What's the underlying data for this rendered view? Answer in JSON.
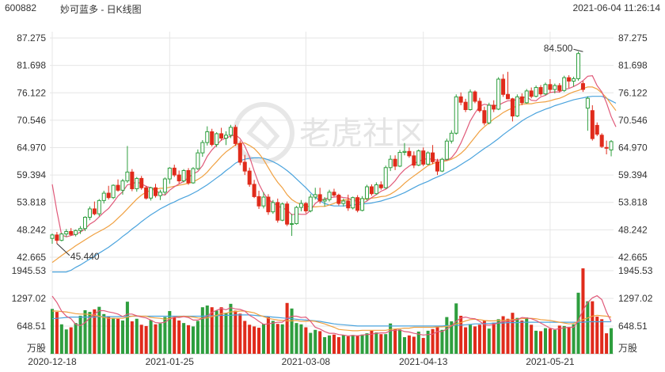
{
  "header": {
    "code": "600882",
    "title": "妙可蓝多 - 日K线图",
    "timestamp": "2021-06-04 11:26:14"
  },
  "watermark": "老虎社区",
  "colors": {
    "up": "#2e9e3e",
    "down": "#e02b1b",
    "ma5": "#e05a7a",
    "ma10": "#f0a040",
    "ma20": "#4aa3dd",
    "grid": "#e6e6e6",
    "annot": "#333333"
  },
  "chart_data": {
    "type": "candlestick",
    "price_axis": {
      "ticks": [
        "87.275",
        "81.698",
        "76.122",
        "70.546",
        "64.970",
        "59.394",
        "53.818",
        "48.242",
        "42.665"
      ],
      "range": [
        42.665,
        87.275
      ]
    },
    "volume_axis": {
      "ticks": [
        "1945.53",
        "1297.02",
        "648.51"
      ],
      "unit": "万股",
      "range": [
        0,
        1945.53
      ]
    },
    "date_labels": [
      "2020-12-18",
      "2021-01-25",
      "2021-03-08",
      "2021-04-13",
      "2021-05-21"
    ],
    "date_label_index": [
      0,
      25,
      54,
      79,
      106
    ],
    "annotations": [
      {
        "text": "84.500",
        "index": 113,
        "value": 84.5
      },
      {
        "text": "45.440",
        "index": 1,
        "value": 45.44
      }
    ],
    "candles": [
      [
        46.5,
        47.5,
        45.4,
        47.2
      ],
      [
        47.2,
        47.8,
        45.4,
        46.1
      ],
      [
        46.1,
        47.6,
        45.9,
        47.4
      ],
      [
        47.4,
        48.4,
        46.8,
        47.9
      ],
      [
        47.9,
        48.6,
        47.0,
        47.3
      ],
      [
        47.3,
        48.3,
        46.9,
        48.1
      ],
      [
        48.1,
        49.0,
        47.4,
        48.5
      ],
      [
        48.5,
        51.0,
        48.0,
        50.8
      ],
      [
        50.8,
        53.0,
        50.2,
        52.5
      ],
      [
        52.5,
        54.0,
        51.2,
        51.5
      ],
      [
        51.5,
        54.5,
        51.0,
        54.2
      ],
      [
        54.2,
        56.2,
        53.6,
        55.7
      ],
      [
        55.7,
        57.2,
        54.4,
        54.8
      ],
      [
        54.8,
        57.5,
        54.5,
        57.3
      ],
      [
        57.3,
        58.5,
        56.0,
        56.3
      ],
      [
        56.3,
        58.6,
        55.4,
        58.2
      ],
      [
        58.2,
        65.3,
        57.8,
        60.0
      ],
      [
        60.0,
        60.6,
        56.1,
        56.6
      ],
      [
        56.6,
        59.0,
        56.0,
        58.7
      ],
      [
        58.7,
        59.2,
        56.4,
        56.8
      ],
      [
        56.8,
        57.2,
        54.4,
        54.7
      ],
      [
        54.7,
        57.0,
        54.2,
        56.8
      ],
      [
        56.8,
        57.6,
        54.8,
        55.2
      ],
      [
        55.2,
        56.4,
        54.3,
        55.9
      ],
      [
        55.9,
        58.9,
        55.4,
        58.6
      ],
      [
        58.6,
        61.0,
        57.6,
        60.8
      ],
      [
        60.8,
        61.5,
        59.0,
        59.4
      ],
      [
        59.4,
        60.3,
        57.7,
        58.2
      ],
      [
        58.2,
        60.6,
        57.9,
        60.3
      ],
      [
        60.3,
        60.8,
        57.4,
        57.8
      ],
      [
        57.8,
        61.0,
        57.6,
        60.7
      ],
      [
        60.7,
        64.6,
        60.4,
        63.9
      ],
      [
        63.9,
        66.5,
        63.1,
        66.0
      ],
      [
        66.0,
        69.3,
        65.4,
        68.2
      ],
      [
        68.2,
        68.8,
        65.2,
        65.6
      ],
      [
        65.6,
        68.1,
        65.1,
        67.8
      ],
      [
        67.8,
        69.0,
        66.4,
        66.9
      ],
      [
        66.9,
        68.3,
        65.5,
        67.5
      ],
      [
        67.5,
        69.6,
        66.9,
        69.1
      ],
      [
        69.1,
        69.6,
        65.3,
        65.8
      ],
      [
        65.8,
        66.4,
        61.4,
        62.0
      ],
      [
        62.0,
        63.5,
        59.4,
        60.2
      ],
      [
        60.2,
        60.9,
        57.0,
        57.5
      ],
      [
        57.5,
        58.4,
        54.7,
        55.0
      ],
      [
        55.0,
        56.2,
        52.5,
        53.1
      ],
      [
        53.1,
        55.9,
        52.6,
        54.9
      ],
      [
        54.9,
        55.5,
        51.3,
        51.9
      ],
      [
        51.9,
        54.3,
        51.5,
        53.8
      ],
      [
        53.8,
        54.6,
        49.7,
        50.2
      ],
      [
        50.2,
        53.8,
        50.0,
        53.5
      ],
      [
        53.5,
        54.0,
        49.0,
        49.4
      ],
      [
        49.4,
        51.5,
        47.0,
        49.5
      ],
      [
        49.5,
        53.1,
        49.3,
        52.8
      ],
      [
        52.8,
        54.3,
        52.0,
        53.6
      ],
      [
        53.6,
        53.9,
        51.6,
        52.1
      ],
      [
        52.1,
        55.5,
        51.8,
        54.9
      ],
      [
        54.9,
        56.8,
        54.4,
        55.4
      ],
      [
        55.4,
        56.8,
        53.6,
        54.1
      ],
      [
        54.1,
        54.9,
        53.0,
        54.4
      ],
      [
        54.4,
        56.4,
        54.0,
        55.9
      ],
      [
        55.9,
        56.6,
        55.0,
        55.3
      ],
      [
        55.3,
        55.6,
        53.2,
        53.6
      ],
      [
        53.6,
        54.6,
        53.0,
        54.1
      ],
      [
        54.1,
        55.4,
        52.1,
        52.7
      ],
      [
        52.7,
        55.0,
        52.4,
        54.8
      ],
      [
        54.8,
        55.3,
        51.8,
        52.2
      ],
      [
        52.2,
        55.1,
        52.0,
        54.6
      ],
      [
        54.6,
        57.4,
        54.2,
        57.0
      ],
      [
        57.0,
        57.5,
        55.2,
        55.6
      ],
      [
        55.6,
        57.9,
        55.4,
        57.4
      ],
      [
        57.4,
        58.1,
        56.4,
        56.8
      ],
      [
        56.8,
        61.3,
        56.6,
        60.9
      ],
      [
        60.9,
        63.4,
        60.2,
        62.6
      ],
      [
        62.6,
        63.4,
        60.4,
        61.2
      ],
      [
        61.2,
        64.5,
        61.0,
        64.0
      ],
      [
        64.0,
        65.9,
        63.4,
        64.2
      ],
      [
        64.2,
        65.0,
        62.9,
        63.3
      ],
      [
        63.3,
        64.2,
        60.8,
        61.4
      ],
      [
        61.4,
        64.6,
        61.2,
        64.3
      ],
      [
        64.3,
        65.0,
        61.2,
        61.6
      ],
      [
        61.6,
        64.2,
        61.4,
        63.9
      ],
      [
        63.9,
        65.5,
        61.6,
        62.1
      ],
      [
        62.1,
        62.7,
        59.4,
        60.2
      ],
      [
        60.2,
        62.9,
        60.0,
        62.6
      ],
      [
        62.6,
        66.8,
        62.4,
        66.3
      ],
      [
        66.3,
        68.5,
        65.8,
        67.9
      ],
      [
        67.9,
        75.8,
        67.6,
        75.3
      ],
      [
        75.3,
        76.2,
        73.6,
        74.2
      ],
      [
        74.2,
        74.9,
        72.2,
        72.7
      ],
      [
        72.7,
        76.8,
        72.5,
        76.3
      ],
      [
        76.3,
        76.6,
        74.0,
        74.4
      ],
      [
        74.4,
        75.1,
        72.1,
        72.5
      ],
      [
        72.5,
        73.3,
        69.5,
        70.0
      ],
      [
        70.0,
        74.1,
        69.7,
        73.6
      ],
      [
        73.6,
        74.6,
        72.2,
        72.8
      ],
      [
        72.8,
        79.3,
        72.6,
        78.9
      ],
      [
        78.9,
        79.9,
        75.3,
        75.8
      ],
      [
        75.8,
        80.4,
        74.8,
        74.9
      ],
      [
        74.9,
        75.1,
        70.3,
        71.4
      ],
      [
        71.4,
        75.8,
        71.2,
        75.3
      ],
      [
        75.3,
        76.0,
        73.6,
        74.1
      ],
      [
        74.1,
        76.9,
        73.9,
        76.5
      ],
      [
        76.5,
        77.2,
        75.0,
        75.4
      ],
      [
        75.4,
        77.6,
        75.2,
        77.2
      ],
      [
        77.2,
        77.7,
        75.5,
        75.9
      ],
      [
        75.9,
        78.2,
        75.6,
        77.8
      ],
      [
        77.8,
        78.9,
        76.1,
        76.8
      ],
      [
        76.8,
        78.0,
        76.0,
        77.6
      ],
      [
        77.6,
        78.1,
        76.2,
        76.6
      ],
      [
        76.6,
        79.6,
        76.3,
        79.2
      ],
      [
        79.2,
        79.7,
        77.1,
        78.5
      ],
      [
        78.5,
        79.4,
        77.4,
        79.0
      ],
      [
        79.0,
        84.5,
        78.6,
        84.1
      ],
      [
        78.0,
        78.5,
        76.3,
        76.8
      ],
      [
        73.0,
        75.4,
        68.4,
        75.0
      ],
      [
        72.5,
        73.6,
        66.4,
        66.8
      ],
      [
        69.5,
        70.1,
        67.3,
        67.7
      ],
      [
        67.5,
        67.9,
        64.9,
        65.2
      ],
      [
        65.0,
        66.4,
        63.6,
        64.9
      ],
      [
        64.5,
        66.5,
        63.2,
        66.2
      ]
    ],
    "volume": [
      1050,
      980,
      690,
      570,
      620,
      720,
      890,
      1020,
      980,
      1040,
      1100,
      930,
      880,
      840,
      820,
      780,
      1220,
      760,
      820,
      680,
      650,
      790,
      690,
      710,
      860,
      1000,
      860,
      780,
      720,
      670,
      640,
      770,
      1090,
      1130,
      1090,
      1010,
      1090,
      960,
      1170,
      1010,
      940,
      770,
      680,
      640,
      610,
      700,
      860,
      770,
      700,
      690,
      1190,
      1060,
      720,
      690,
      620,
      490,
      560,
      530,
      390,
      430,
      450,
      390,
      440,
      410,
      440,
      430,
      450,
      480,
      540,
      500,
      460,
      460,
      710,
      580,
      570,
      390,
      430,
      400,
      520,
      370,
      540,
      580,
      640,
      560,
      860,
      760,
      1180,
      890,
      620,
      680,
      640,
      680,
      770,
      590,
      730,
      810,
      880,
      820,
      960,
      840,
      780,
      850,
      680,
      540,
      530,
      600,
      590,
      560,
      660,
      650,
      620,
      690,
      1430,
      2000,
      1230,
      1230,
      870,
      810,
      480,
      600
    ],
    "ma5": [
      57.5,
      52.0,
      47.2,
      46.8,
      47.1,
      47.3,
      47.8,
      48.4,
      49.4,
      50.0,
      50.9,
      51.8,
      52.6,
      53.8,
      55.1,
      56.0,
      57.4,
      57.6,
      58.0,
      57.6,
      57.1,
      56.8,
      56.4,
      55.5,
      55.3,
      56.3,
      57.0,
      57.6,
      58.1,
      58.9,
      59.6,
      60.1,
      61.3,
      63.2,
      64.5,
      65.5,
      66.5,
      66.9,
      67.3,
      67.6,
      66.8,
      65.3,
      63.1,
      60.2,
      57.6,
      55.7,
      54.4,
      53.8,
      53.1,
      52.7,
      52.3,
      51.3,
      51.5,
      51.4,
      51.4,
      52.2,
      53.6,
      54.3,
      54.5,
      54.8,
      54.9,
      55.0,
      54.8,
      54.7,
      54.2,
      54.1,
      53.6,
      54.1,
      54.8,
      55.4,
      56.1,
      56.5,
      57.2,
      58.2,
      59.5,
      60.5,
      61.2,
      61.8,
      62.1,
      62.6,
      62.7,
      62.6,
      62.4,
      62.5,
      62.4,
      62.9,
      64.1,
      65.9,
      68.1,
      70.4,
      72.0,
      73.4,
      73.8,
      73.6,
      73.5,
      73.6,
      74.1,
      74.5,
      74.5,
      74.8,
      75.1,
      75.3,
      74.6,
      74.5,
      75.3,
      75.6,
      76.2,
      76.3,
      76.3,
      76.8,
      77.0,
      77.4,
      77.9,
      78.6,
      79.5,
      79.6,
      77.6,
      76.3,
      74.1,
      71.3,
      69.2
    ],
    "ma10": [
      41.6,
      42.3,
      43.0,
      43.7,
      44.3,
      45.0,
      45.6,
      46.2,
      46.8,
      47.4,
      47.9,
      48.4,
      49.0,
      49.7,
      50.6,
      51.5,
      52.5,
      53.5,
      54.5,
      55.3,
      55.9,
      56.3,
      56.5,
      56.7,
      56.7,
      56.9,
      57.1,
      57.3,
      57.5,
      57.7,
      58.0,
      58.5,
      59.1,
      60.0,
      61.1,
      62.1,
      63.2,
      64.1,
      64.8,
      65.5,
      65.9,
      65.9,
      65.4,
      64.8,
      63.8,
      62.5,
      60.9,
      59.3,
      57.9,
      56.8,
      55.4,
      54.4,
      53.8,
      53.4,
      53.1,
      52.9,
      52.9,
      53.0,
      53.0,
      53.3,
      53.6,
      54.1,
      54.3,
      54.4,
      54.5,
      54.5,
      54.5,
      54.5,
      54.7,
      54.8,
      55.0,
      55.1,
      55.5,
      56.1,
      56.8,
      57.7,
      58.5,
      59.2,
      59.9,
      60.6,
      61.3,
      61.7,
      62.0,
      62.1,
      62.3,
      62.6,
      63.1,
      63.8,
      64.7,
      65.9,
      67.1,
      68.3,
      69.2,
      70.0,
      70.8,
      71.4,
      72.1,
      72.6,
      73.0,
      73.5,
      73.8,
      73.9,
      73.9,
      74.1,
      74.2,
      74.3,
      74.5,
      74.8,
      75.0,
      75.4,
      75.9,
      76.3,
      76.6,
      77.0,
      77.3,
      77.3,
      76.9,
      76.1,
      75.1,
      73.8,
      72.5
    ],
    "ma20": [
      38.0,
      38.5,
      39.0,
      39.5,
      40.0,
      40.6,
      41.1,
      41.7,
      42.3,
      42.9,
      43.5,
      44.1,
      44.7,
      45.4,
      46.1,
      46.9,
      47.6,
      48.4,
      49.1,
      49.9,
      50.6,
      51.3,
      51.9,
      52.5,
      53.0,
      53.5,
      53.9,
      54.4,
      54.8,
      55.2,
      55.7,
      56.2,
      56.8,
      57.4,
      58.1,
      58.8,
      59.5,
      60.3,
      61.0,
      61.8,
      62.3,
      62.6,
      62.8,
      62.9,
      62.9,
      62.8,
      62.5,
      62.1,
      61.6,
      61.0,
      60.3,
      59.5,
      58.6,
      57.7,
      56.8,
      55.8,
      54.9,
      54.1,
      53.6,
      53.3,
      53.1,
      53.1,
      53.1,
      53.2,
      53.3,
      53.4,
      53.5,
      53.6,
      53.7,
      53.9,
      54.1,
      54.4,
      54.7,
      55.0,
      55.4,
      55.8,
      56.3,
      56.8,
      57.3,
      57.7,
      58.1,
      58.6,
      59.0,
      59.4,
      59.9,
      60.4,
      60.9,
      61.5,
      62.1,
      62.7,
      63.4,
      64.1,
      64.8,
      65.4,
      66.1,
      66.8,
      67.6,
      68.3,
      69.0,
      69.7,
      70.4,
      71.0,
      71.5,
      72.0,
      72.4,
      72.8,
      73.1,
      73.5,
      73.8,
      74.1,
      74.4,
      74.7,
      74.9,
      75.1,
      75.3,
      75.4,
      75.4,
      75.4,
      75.0,
      74.5,
      74.0
    ],
    "vol_ma5": [
      1350,
      1200,
      1000,
      880,
      820,
      690,
      660,
      730,
      840,
      930,
      1010,
      1010,
      980,
      960,
      930,
      870,
      930,
      930,
      890,
      860,
      840,
      790,
      730,
      720,
      740,
      810,
      860,
      850,
      870,
      850,
      790,
      790,
      830,
      880,
      970,
      1020,
      1060,
      1030,
      1080,
      1050,
      1040,
      1000,
      900,
      840,
      760,
      690,
      700,
      720,
      740,
      740,
      830,
      880,
      880,
      850,
      860,
      760,
      620,
      580,
      520,
      480,
      480,
      450,
      440,
      420,
      430,
      420,
      440,
      450,
      460,
      480,
      490,
      490,
      540,
      550,
      560,
      520,
      510,
      480,
      460,
      440,
      450,
      460,
      520,
      520,
      580,
      650,
      760,
      840,
      860,
      830,
      820,
      760,
      680,
      670,
      690,
      720,
      760,
      750,
      780,
      800,
      850,
      840,
      820,
      780,
      720,
      660,
      600,
      570,
      590,
      610,
      620,
      620,
      780,
      1020,
      1200,
      1310,
      1360,
      1270,
      980,
      760
    ],
    "vol_ma10": [
      1000,
      1000,
      990,
      980,
      960,
      940,
      930,
      930,
      920,
      900,
      880,
      850,
      830,
      830,
      830,
      830,
      860,
      880,
      890,
      880,
      880,
      850,
      840,
      830,
      810,
      830,
      860,
      870,
      880,
      870,
      860,
      840,
      830,
      840,
      870,
      900,
      940,
      950,
      980,
      990,
      1000,
      1000,
      980,
      960,
      910,
      870,
      830,
      810,
      790,
      780,
      770,
      770,
      780,
      760,
      760,
      770,
      760,
      730,
      700,
      660,
      620,
      570,
      560,
      550,
      540,
      540,
      550,
      550,
      550,
      550,
      550,
      550,
      570,
      580,
      590,
      600,
      600,
      620,
      620,
      620,
      620,
      620,
      630,
      630,
      640,
      660,
      700,
      730,
      770,
      800,
      810,
      800,
      780,
      770,
      770,
      780,
      780,
      790,
      800,
      810,
      820,
      830,
      830,
      820,
      800,
      790,
      780,
      760,
      740,
      720,
      700,
      710,
      760,
      800,
      840,
      880,
      900,
      890,
      880,
      860
    ],
    "vol_ma20": [
      820,
      830,
      840,
      850,
      860,
      860,
      860,
      860,
      860,
      860,
      870,
      870,
      870,
      870,
      870,
      870,
      880,
      880,
      880,
      880,
      880,
      880,
      880,
      880,
      880,
      880,
      880,
      880,
      880,
      880,
      880,
      880,
      880,
      890,
      890,
      890,
      900,
      900,
      900,
      910,
      910,
      910,
      910,
      900,
      890,
      880,
      870,
      860,
      850,
      840,
      830,
      820,
      810,
      800,
      790,
      780,
      770,
      760,
      740,
      720,
      700,
      690,
      680,
      670,
      660,
      650,
      650,
      650,
      650,
      650,
      650,
      650,
      650,
      650,
      650,
      650,
      650,
      650,
      650,
      650,
      650,
      650,
      650,
      650,
      660,
      660,
      670,
      670,
      680,
      690,
      700,
      700,
      710,
      710,
      720,
      720,
      720,
      730,
      730,
      730,
      740,
      740,
      740,
      740,
      740,
      740,
      740,
      740,
      740,
      740,
      740,
      740,
      740,
      740,
      750,
      750,
      750,
      750,
      750,
      750
    ]
  }
}
